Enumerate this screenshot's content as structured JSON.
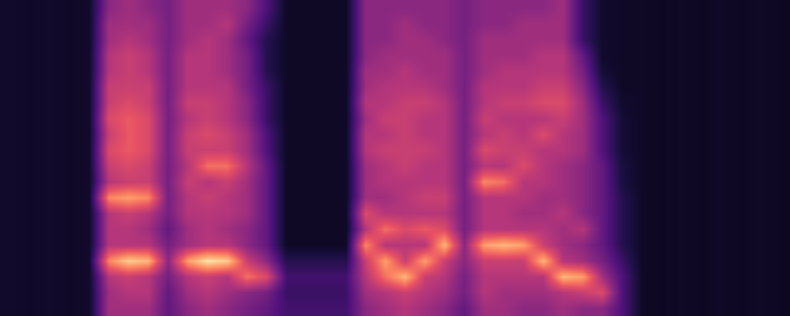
{
  "chart_data": {
    "type": "heatmap",
    "color": "magma",
    "tick_labels": false,
    "grid": false,
    "xlim": [
      -0.5,
      39.5
    ],
    "ylim": [
      -0.5,
      19.5
    ],
    "zlim": [
      0,
      1
    ],
    "cells": [
      [
        0.08,
        0.07,
        0.08,
        0.07,
        0.08,
        0.45,
        0.45,
        0.45,
        0.3,
        0.4,
        0.45,
        0.4,
        0.35,
        0.3,
        0.22,
        0.22,
        0.22,
        0.22,
        0.4,
        0.45,
        0.5,
        0.45,
        0.4,
        0.3,
        0.45,
        0.45,
        0.4,
        0.4,
        0.45,
        0.4,
        0.4,
        0.25,
        0.07,
        0.06,
        0.07,
        0.06,
        0.07,
        0.06,
        0.07,
        0.06
      ],
      [
        0.08,
        0.07,
        0.08,
        0.07,
        0.08,
        0.45,
        0.5,
        0.5,
        0.3,
        0.45,
        0.5,
        0.45,
        0.4,
        0.35,
        0.2,
        0.2,
        0.2,
        0.2,
        0.45,
        0.5,
        0.55,
        0.5,
        0.45,
        0.35,
        0.5,
        0.45,
        0.45,
        0.45,
        0.5,
        0.55,
        0.6,
        0.25,
        0.07,
        0.06,
        0.07,
        0.06,
        0.07,
        0.06,
        0.07,
        0.06
      ],
      [
        0.08,
        0.07,
        0.08,
        0.07,
        0.08,
        0.5,
        0.55,
        0.5,
        0.35,
        0.5,
        0.55,
        0.5,
        0.7,
        0.6,
        0.22,
        0.22,
        0.22,
        0.22,
        0.5,
        0.7,
        0.85,
        0.55,
        0.5,
        0.35,
        0.5,
        0.5,
        0.5,
        0.5,
        0.85,
        0.8,
        0.45,
        0.25,
        0.07,
        0.06,
        0.07,
        0.06,
        0.07,
        0.06,
        0.07,
        0.06
      ],
      [
        0.08,
        0.07,
        0.08,
        0.07,
        0.08,
        0.75,
        0.9,
        0.85,
        0.4,
        0.8,
        0.95,
        0.9,
        0.55,
        0.4,
        0.15,
        0.15,
        0.15,
        0.15,
        0.55,
        0.8,
        0.55,
        0.8,
        0.55,
        0.4,
        0.55,
        0.55,
        0.55,
        0.85,
        0.5,
        0.45,
        0.35,
        0.2,
        0.07,
        0.06,
        0.07,
        0.06,
        0.07,
        0.06,
        0.07,
        0.06
      ],
      [
        0.08,
        0.07,
        0.08,
        0.07,
        0.08,
        0.5,
        0.5,
        0.5,
        0.35,
        0.45,
        0.5,
        0.5,
        0.4,
        0.3,
        0.07,
        0.07,
        0.07,
        0.07,
        0.75,
        0.5,
        0.5,
        0.5,
        0.85,
        0.4,
        0.8,
        0.85,
        0.8,
        0.55,
        0.45,
        0.4,
        0.3,
        0.15,
        0.07,
        0.06,
        0.07,
        0.06,
        0.07,
        0.06,
        0.07,
        0.06
      ],
      [
        0.08,
        0.07,
        0.08,
        0.07,
        0.08,
        0.5,
        0.5,
        0.45,
        0.3,
        0.45,
        0.5,
        0.45,
        0.4,
        0.3,
        0.07,
        0.07,
        0.07,
        0.07,
        0.5,
        0.7,
        0.6,
        0.65,
        0.6,
        0.35,
        0.5,
        0.5,
        0.5,
        0.5,
        0.45,
        0.5,
        0.3,
        0.15,
        0.07,
        0.06,
        0.07,
        0.06,
        0.07,
        0.06,
        0.07,
        0.06
      ],
      [
        0.08,
        0.07,
        0.08,
        0.07,
        0.08,
        0.5,
        0.55,
        0.5,
        0.35,
        0.5,
        0.5,
        0.5,
        0.45,
        0.3,
        0.07,
        0.07,
        0.07,
        0.07,
        0.6,
        0.5,
        0.5,
        0.5,
        0.5,
        0.35,
        0.5,
        0.5,
        0.45,
        0.45,
        0.5,
        0.4,
        0.3,
        0.15,
        0.07,
        0.06,
        0.07,
        0.06,
        0.07,
        0.06,
        0.07,
        0.06
      ],
      [
        0.08,
        0.07,
        0.08,
        0.07,
        0.08,
        0.75,
        0.8,
        0.75,
        0.35,
        0.5,
        0.55,
        0.5,
        0.45,
        0.3,
        0.07,
        0.07,
        0.07,
        0.07,
        0.45,
        0.45,
        0.5,
        0.55,
        0.55,
        0.35,
        0.5,
        0.5,
        0.5,
        0.45,
        0.45,
        0.4,
        0.3,
        0.15,
        0.07,
        0.06,
        0.07,
        0.06,
        0.07,
        0.06,
        0.07,
        0.06
      ],
      [
        0.08,
        0.07,
        0.08,
        0.07,
        0.08,
        0.5,
        0.55,
        0.55,
        0.35,
        0.55,
        0.5,
        0.55,
        0.45,
        0.3,
        0.07,
        0.07,
        0.07,
        0.07,
        0.45,
        0.5,
        0.5,
        0.5,
        0.5,
        0.35,
        0.75,
        0.7,
        0.5,
        0.5,
        0.45,
        0.4,
        0.3,
        0.12,
        0.07,
        0.06,
        0.07,
        0.06,
        0.07,
        0.06,
        0.07,
        0.06
      ],
      [
        0.08,
        0.07,
        0.08,
        0.07,
        0.08,
        0.55,
        0.6,
        0.55,
        0.35,
        0.5,
        0.7,
        0.7,
        0.5,
        0.3,
        0.07,
        0.07,
        0.07,
        0.07,
        0.45,
        0.5,
        0.55,
        0.5,
        0.5,
        0.35,
        0.5,
        0.5,
        0.6,
        0.5,
        0.45,
        0.4,
        0.3,
        0.12,
        0.07,
        0.06,
        0.07,
        0.06,
        0.07,
        0.06,
        0.07,
        0.06
      ],
      [
        0.08,
        0.07,
        0.08,
        0.07,
        0.08,
        0.6,
        0.65,
        0.6,
        0.35,
        0.55,
        0.55,
        0.55,
        0.45,
        0.25,
        0.07,
        0.07,
        0.07,
        0.07,
        0.5,
        0.55,
        0.55,
        0.55,
        0.5,
        0.35,
        0.6,
        0.55,
        0.55,
        0.5,
        0.5,
        0.45,
        0.25,
        0.1,
        0.07,
        0.06,
        0.07,
        0.06,
        0.07,
        0.06,
        0.07,
        0.06
      ],
      [
        0.08,
        0.07,
        0.08,
        0.07,
        0.08,
        0.55,
        0.65,
        0.6,
        0.35,
        0.55,
        0.6,
        0.55,
        0.45,
        0.25,
        0.07,
        0.07,
        0.07,
        0.07,
        0.5,
        0.5,
        0.55,
        0.5,
        0.5,
        0.35,
        0.5,
        0.55,
        0.5,
        0.6,
        0.5,
        0.45,
        0.25,
        0.1,
        0.07,
        0.06,
        0.07,
        0.06,
        0.07,
        0.06,
        0.07,
        0.06
      ],
      [
        0.08,
        0.07,
        0.08,
        0.07,
        0.08,
        0.6,
        0.65,
        0.6,
        0.35,
        0.5,
        0.55,
        0.5,
        0.4,
        0.2,
        0.07,
        0.07,
        0.07,
        0.07,
        0.45,
        0.55,
        0.55,
        0.5,
        0.5,
        0.35,
        0.55,
        0.5,
        0.5,
        0.5,
        0.55,
        0.45,
        0.25,
        0.1,
        0.07,
        0.06,
        0.07,
        0.06,
        0.07,
        0.06,
        0.07,
        0.06
      ],
      [
        0.08,
        0.07,
        0.08,
        0.07,
        0.08,
        0.55,
        0.6,
        0.55,
        0.35,
        0.55,
        0.55,
        0.5,
        0.4,
        0.2,
        0.07,
        0.07,
        0.07,
        0.07,
        0.5,
        0.5,
        0.55,
        0.55,
        0.5,
        0.35,
        0.5,
        0.55,
        0.55,
        0.6,
        0.6,
        0.45,
        0.2,
        0.08,
        0.07,
        0.06,
        0.07,
        0.06,
        0.07,
        0.06,
        0.07,
        0.06
      ],
      [
        0.08,
        0.07,
        0.08,
        0.07,
        0.08,
        0.55,
        0.55,
        0.55,
        0.35,
        0.5,
        0.5,
        0.5,
        0.35,
        0.2,
        0.07,
        0.07,
        0.07,
        0.07,
        0.45,
        0.5,
        0.5,
        0.5,
        0.45,
        0.35,
        0.5,
        0.5,
        0.5,
        0.55,
        0.55,
        0.4,
        0.15,
        0.07,
        0.07,
        0.06,
        0.07,
        0.06,
        0.07,
        0.06,
        0.07,
        0.06
      ],
      [
        0.08,
        0.07,
        0.08,
        0.07,
        0.08,
        0.5,
        0.55,
        0.5,
        0.35,
        0.5,
        0.5,
        0.45,
        0.35,
        0.15,
        0.07,
        0.07,
        0.07,
        0.07,
        0.45,
        0.45,
        0.5,
        0.45,
        0.45,
        0.35,
        0.45,
        0.5,
        0.5,
        0.5,
        0.5,
        0.35,
        0.1,
        0.07,
        0.07,
        0.06,
        0.07,
        0.06,
        0.07,
        0.06,
        0.07,
        0.06
      ],
      [
        0.08,
        0.07,
        0.08,
        0.07,
        0.08,
        0.5,
        0.55,
        0.5,
        0.35,
        0.5,
        0.5,
        0.45,
        0.35,
        0.15,
        0.07,
        0.07,
        0.07,
        0.07,
        0.4,
        0.45,
        0.45,
        0.45,
        0.45,
        0.35,
        0.45,
        0.45,
        0.45,
        0.5,
        0.5,
        0.3,
        0.08,
        0.07,
        0.07,
        0.06,
        0.07,
        0.06,
        0.07,
        0.06,
        0.07,
        0.06
      ],
      [
        0.08,
        0.07,
        0.08,
        0.07,
        0.08,
        0.45,
        0.5,
        0.45,
        0.35,
        0.45,
        0.5,
        0.45,
        0.3,
        0.15,
        0.07,
        0.07,
        0.07,
        0.07,
        0.4,
        0.4,
        0.45,
        0.45,
        0.4,
        0.35,
        0.45,
        0.45,
        0.45,
        0.45,
        0.45,
        0.2,
        0.08,
        0.07,
        0.07,
        0.06,
        0.07,
        0.06,
        0.07,
        0.06,
        0.07,
        0.06
      ],
      [
        0.08,
        0.07,
        0.08,
        0.07,
        0.08,
        0.45,
        0.45,
        0.45,
        0.35,
        0.45,
        0.45,
        0.5,
        0.35,
        0.2,
        0.07,
        0.07,
        0.07,
        0.07,
        0.4,
        0.4,
        0.45,
        0.4,
        0.4,
        0.35,
        0.4,
        0.4,
        0.45,
        0.45,
        0.45,
        0.2,
        0.08,
        0.07,
        0.07,
        0.06,
        0.07,
        0.06,
        0.07,
        0.06,
        0.07,
        0.06
      ],
      [
        0.08,
        0.07,
        0.08,
        0.07,
        0.08,
        0.4,
        0.45,
        0.4,
        0.35,
        0.45,
        0.45,
        0.45,
        0.4,
        0.25,
        0.07,
        0.07,
        0.07,
        0.07,
        0.4,
        0.4,
        0.4,
        0.4,
        0.4,
        0.35,
        0.4,
        0.4,
        0.4,
        0.4,
        0.45,
        0.2,
        0.08,
        0.07,
        0.07,
        0.06,
        0.07,
        0.06,
        0.07,
        0.06,
        0.07,
        0.06
      ]
    ]
  }
}
